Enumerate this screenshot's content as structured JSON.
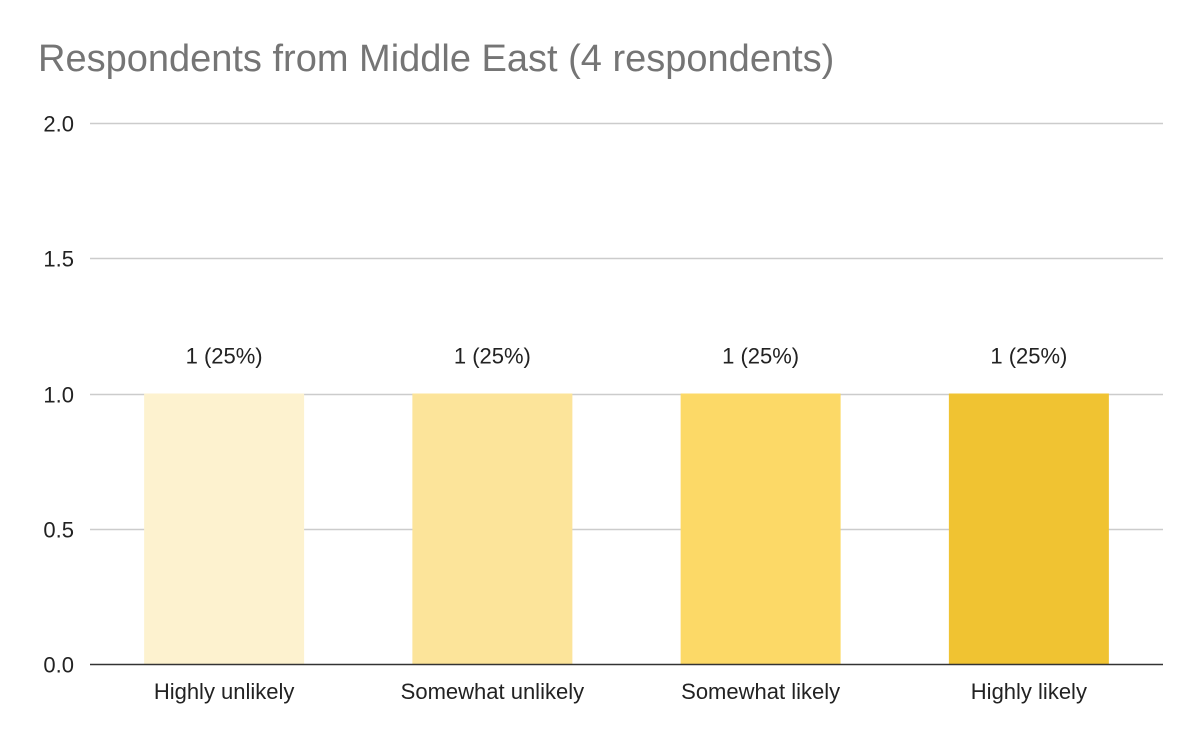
{
  "chart_data": {
    "type": "bar",
    "title": "Respondents from Middle East (4 respondents)",
    "xlabel": "",
    "ylabel": "",
    "categories": [
      "Highly unlikely",
      "Somewhat unlikely",
      "Somewhat likely",
      "Highly likely"
    ],
    "values": [
      1,
      1,
      1,
      1
    ],
    "data_labels": [
      "1 (25%)",
      "1 (25%)",
      "1 (25%)",
      "1 (25%)"
    ],
    "ylim": [
      0,
      2
    ],
    "yticks": [
      "0.0",
      "0.5",
      "1.0",
      "1.5",
      "2.0"
    ],
    "ytick_values": [
      0,
      0.5,
      1,
      1.5,
      2
    ],
    "grid": true,
    "legend": "none",
    "colors": [
      "#fdf2cf",
      "#fce49a",
      "#fcd967",
      "#f0c332"
    ],
    "gridline_color": "#cccccc",
    "axis_color": "#333333"
  }
}
